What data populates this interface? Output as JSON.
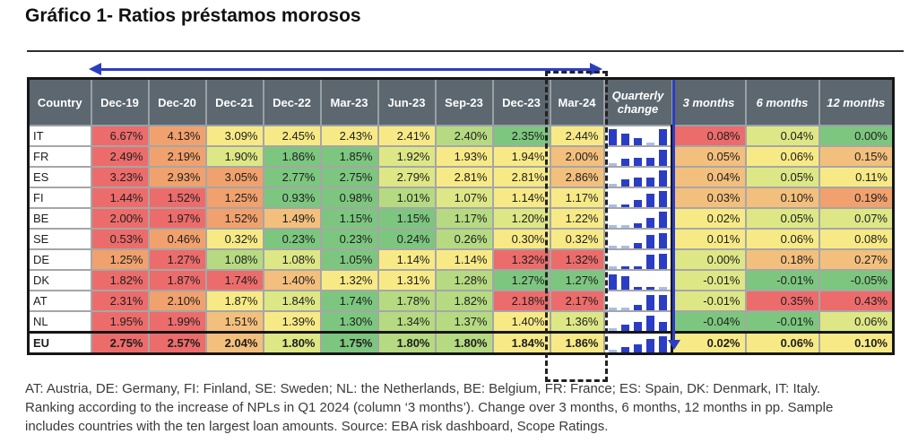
{
  "title": "Gráfico 1- Ratios préstamos morosos",
  "colors": {
    "palette": {
      "red": "#EC6C6B",
      "orange": "#F0A16D",
      "lightorange": "#F3BF7D",
      "yellow": "#F7EA86",
      "yellowgreen": "#DDE786",
      "lightgreen": "#B5DA82",
      "green": "#7DC67F"
    },
    "header_bg": "#5C6770",
    "header_text": "#FFFFFF",
    "accent_blue": "#2B3EC3",
    "faded_blue": "#A9BDE9",
    "grid_border": "#A6A6A6",
    "strong_border": "#161616"
  },
  "chart_data": {
    "type": "table",
    "title": "Gráfico 1- Ratios préstamos morosos",
    "columns": [
      "Country",
      "Dec-19",
      "Dec-20",
      "Dec-21",
      "Dec-22",
      "Mar-23",
      "Jun-23",
      "Sep-23",
      "Dec-23",
      "Mar-24",
      "Quarterly change",
      "3 months",
      "6 months",
      "12 months"
    ],
    "highlighted_column": "Mar-24",
    "rows": [
      {
        "country": "IT",
        "bold": false,
        "values": [
          "6.67%",
          "4.13%",
          "3.09%",
          "2.45%",
          "2.43%",
          "2.41%",
          "2.40%",
          "2.35%",
          "2.44%"
        ],
        "value_colors": [
          "red",
          "orange",
          "yellow",
          "yellow",
          "yellow",
          "yellow",
          "lightgreen",
          "green",
          "yellow"
        ],
        "sparkline": [
          0.95,
          0.7,
          0.42,
          0.08,
          0.95
        ],
        "changes": [
          "0.08%",
          "0.04%",
          "0.00%"
        ],
        "change_colors": [
          "red",
          "yellowgreen",
          "green"
        ]
      },
      {
        "country": "FR",
        "bold": false,
        "values": [
          "2.49%",
          "2.19%",
          "1.90%",
          "1.86%",
          "1.85%",
          "1.92%",
          "1.93%",
          "1.94%",
          "2.00%"
        ],
        "value_colors": [
          "red",
          "orange",
          "yellowgreen",
          "green",
          "green",
          "yellowgreen",
          "yellow",
          "yellow",
          "lightorange"
        ],
        "sparkline": [
          0.1,
          0.42,
          0.48,
          0.48,
          0.95
        ],
        "changes": [
          "0.05%",
          "0.06%",
          "0.15%"
        ],
        "change_colors": [
          "lightorange",
          "yellow",
          "lightorange"
        ]
      },
      {
        "country": "ES",
        "bold": false,
        "values": [
          "3.23%",
          "2.93%",
          "3.05%",
          "2.77%",
          "2.75%",
          "2.79%",
          "2.81%",
          "2.81%",
          "2.86%"
        ],
        "value_colors": [
          "red",
          "orange",
          "orange",
          "green",
          "green",
          "yellowgreen",
          "yellow",
          "yellow",
          "lightorange"
        ],
        "sparkline": [
          0.06,
          0.42,
          0.55,
          0.55,
          0.95
        ],
        "changes": [
          "0.04%",
          "0.05%",
          "0.11%"
        ],
        "change_colors": [
          "lightorange",
          "yellowgreen",
          "yellow"
        ]
      },
      {
        "country": "FI",
        "bold": false,
        "values": [
          "1.44%",
          "1.52%",
          "1.25%",
          "0.93%",
          "0.98%",
          "1.01%",
          "1.07%",
          "1.14%",
          "1.17%"
        ],
        "value_colors": [
          "red",
          "red",
          "orange",
          "green",
          "green",
          "lightgreen",
          "yellowgreen",
          "yellow",
          "yellow"
        ],
        "sparkline": [
          0.08,
          0.16,
          0.42,
          0.8,
          0.95
        ],
        "changes": [
          "0.03%",
          "0.10%",
          "0.19%"
        ],
        "change_colors": [
          "lightorange",
          "lightorange",
          "orange"
        ]
      },
      {
        "country": "BE",
        "bold": false,
        "values": [
          "2.00%",
          "1.97%",
          "1.52%",
          "1.49%",
          "1.15%",
          "1.15%",
          "1.17%",
          "1.20%",
          "1.22%"
        ],
        "value_colors": [
          "red",
          "red",
          "orange",
          "lightorange",
          "green",
          "green",
          "lightgreen",
          "yellowgreen",
          "yellow"
        ],
        "sparkline": [
          0.06,
          0.06,
          0.28,
          0.6,
          0.95
        ],
        "changes": [
          "0.02%",
          "0.05%",
          "0.07%"
        ],
        "change_colors": [
          "yellow",
          "yellowgreen",
          "yellowgreen"
        ]
      },
      {
        "country": "SE",
        "bold": false,
        "values": [
          "0.53%",
          "0.46%",
          "0.32%",
          "0.23%",
          "0.23%",
          "0.24%",
          "0.26%",
          "0.30%",
          "0.32%"
        ],
        "value_colors": [
          "red",
          "orange",
          "yellow",
          "green",
          "green",
          "green",
          "lightgreen",
          "yellow",
          "yellow"
        ],
        "sparkline": [
          0.05,
          0.05,
          0.3,
          0.8,
          0.9
        ],
        "changes": [
          "0.01%",
          "0.06%",
          "0.08%"
        ],
        "change_colors": [
          "yellow",
          "yellow",
          "yellow"
        ]
      },
      {
        "country": "DE",
        "bold": false,
        "values": [
          "1.25%",
          "1.27%",
          "1.08%",
          "1.08%",
          "1.05%",
          "1.14%",
          "1.14%",
          "1.32%",
          "1.32%"
        ],
        "value_colors": [
          "orange",
          "red",
          "lightgreen",
          "yellowgreen",
          "green",
          "yellow",
          "yellow",
          "red",
          "red"
        ],
        "sparkline": [
          0.05,
          0.16,
          0.16,
          0.85,
          0.9
        ],
        "changes": [
          "0.00%",
          "0.18%",
          "0.27%"
        ],
        "change_colors": [
          "yellowgreen",
          "lightorange",
          "lightorange"
        ]
      },
      {
        "country": "DK",
        "bold": false,
        "values": [
          "1.82%",
          "1.87%",
          "1.74%",
          "1.40%",
          "1.32%",
          "1.31%",
          "1.28%",
          "1.27%",
          "1.27%"
        ],
        "value_colors": [
          "red",
          "red",
          "red",
          "lightorange",
          "yellow",
          "yellow",
          "lightgreen",
          "green",
          "green"
        ],
        "sparkline": [
          0.9,
          0.8,
          0.16,
          0.16,
          0.05
        ],
        "changes": [
          "-0.01%",
          "-0.01%",
          "-0.05%"
        ],
        "change_colors": [
          "yellowgreen",
          "green",
          "green"
        ]
      },
      {
        "country": "AT",
        "bold": false,
        "values": [
          "2.31%",
          "2.10%",
          "1.87%",
          "1.84%",
          "1.74%",
          "1.78%",
          "1.82%",
          "2.18%",
          "2.17%"
        ],
        "value_colors": [
          "red",
          "orange",
          "yellow",
          "yellowgreen",
          "green",
          "lightgreen",
          "lightgreen",
          "red",
          "red"
        ],
        "sparkline": [
          0.08,
          0.08,
          0.3,
          0.9,
          0.9
        ],
        "changes": [
          "-0.01%",
          "0.35%",
          "0.43%"
        ],
        "change_colors": [
          "yellowgreen",
          "red",
          "red"
        ]
      },
      {
        "country": "NL",
        "bold": false,
        "values": [
          "1.95%",
          "1.99%",
          "1.51%",
          "1.39%",
          "1.30%",
          "1.34%",
          "1.37%",
          "1.40%",
          "1.36%"
        ],
        "value_colors": [
          "red",
          "red",
          "lightorange",
          "yellow",
          "green",
          "lightgreen",
          "lightgreen",
          "yellow",
          "yellowgreen"
        ],
        "sparkline": [
          0.1,
          0.35,
          0.55,
          0.9,
          0.55
        ],
        "changes": [
          "-0.04%",
          "-0.01%",
          "0.06%"
        ],
        "change_colors": [
          "green",
          "green",
          "yellowgreen"
        ]
      },
      {
        "country": "EU",
        "bold": true,
        "values": [
          "2.75%",
          "2.57%",
          "2.04%",
          "1.80%",
          "1.75%",
          "1.80%",
          "1.80%",
          "1.84%",
          "1.86%"
        ],
        "value_colors": [
          "red",
          "red",
          "lightorange",
          "yellowgreen",
          "green",
          "lightgreen",
          "lightgreen",
          "yellow",
          "yellow"
        ],
        "sparkline": [
          0.12,
          0.3,
          0.45,
          0.8,
          0.95
        ],
        "changes": [
          "0.02%",
          "0.06%",
          "0.10%"
        ],
        "change_colors": [
          "yellow",
          "yellow",
          "yellow"
        ]
      }
    ]
  },
  "footnote_lines": [
    "AT: Austria, DE: Germany, FI: Finland, SE: Sweden; NL: the Netherlands, BE: Belgium, FR: France; ES: Spain, DK: Denmark, IT: Italy.",
    "Ranking according to the increase of NPLs in Q1 2024 (column ‘3 months’). Change over 3 months, 6 months, 12 months in pp. Sample",
    "includes countries with the ten largest loan amounts. Source: EBA risk dashboard, Scope Ratings."
  ]
}
